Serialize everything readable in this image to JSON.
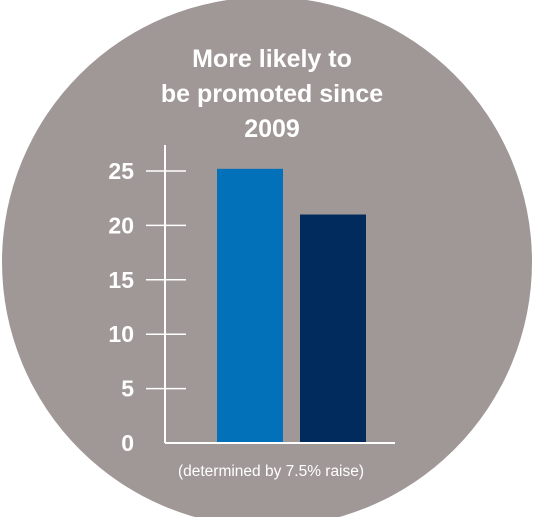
{
  "colors": {
    "background_circle": "#a09896",
    "axis": "#ffffff",
    "text": "#ffffff"
  },
  "chart_data": {
    "type": "bar",
    "title": "More likely to be promoted since 2009",
    "title_lines": [
      "More likely to",
      "be promoted since",
      "2009"
    ],
    "xlabel": "",
    "ylabel": "",
    "ylim": [
      0,
      25
    ],
    "yticks": [
      0,
      5,
      10,
      15,
      20,
      25
    ],
    "ytick_labels": [
      "0",
      "5",
      "10",
      "15",
      "20",
      "25"
    ],
    "note": "(determined by 7.5% raise)",
    "grid": false,
    "legend": "none",
    "bars": [
      {
        "value": 25.2,
        "color": "#0271b9"
      },
      {
        "value": 21.0,
        "color": "#002b5c"
      }
    ]
  }
}
